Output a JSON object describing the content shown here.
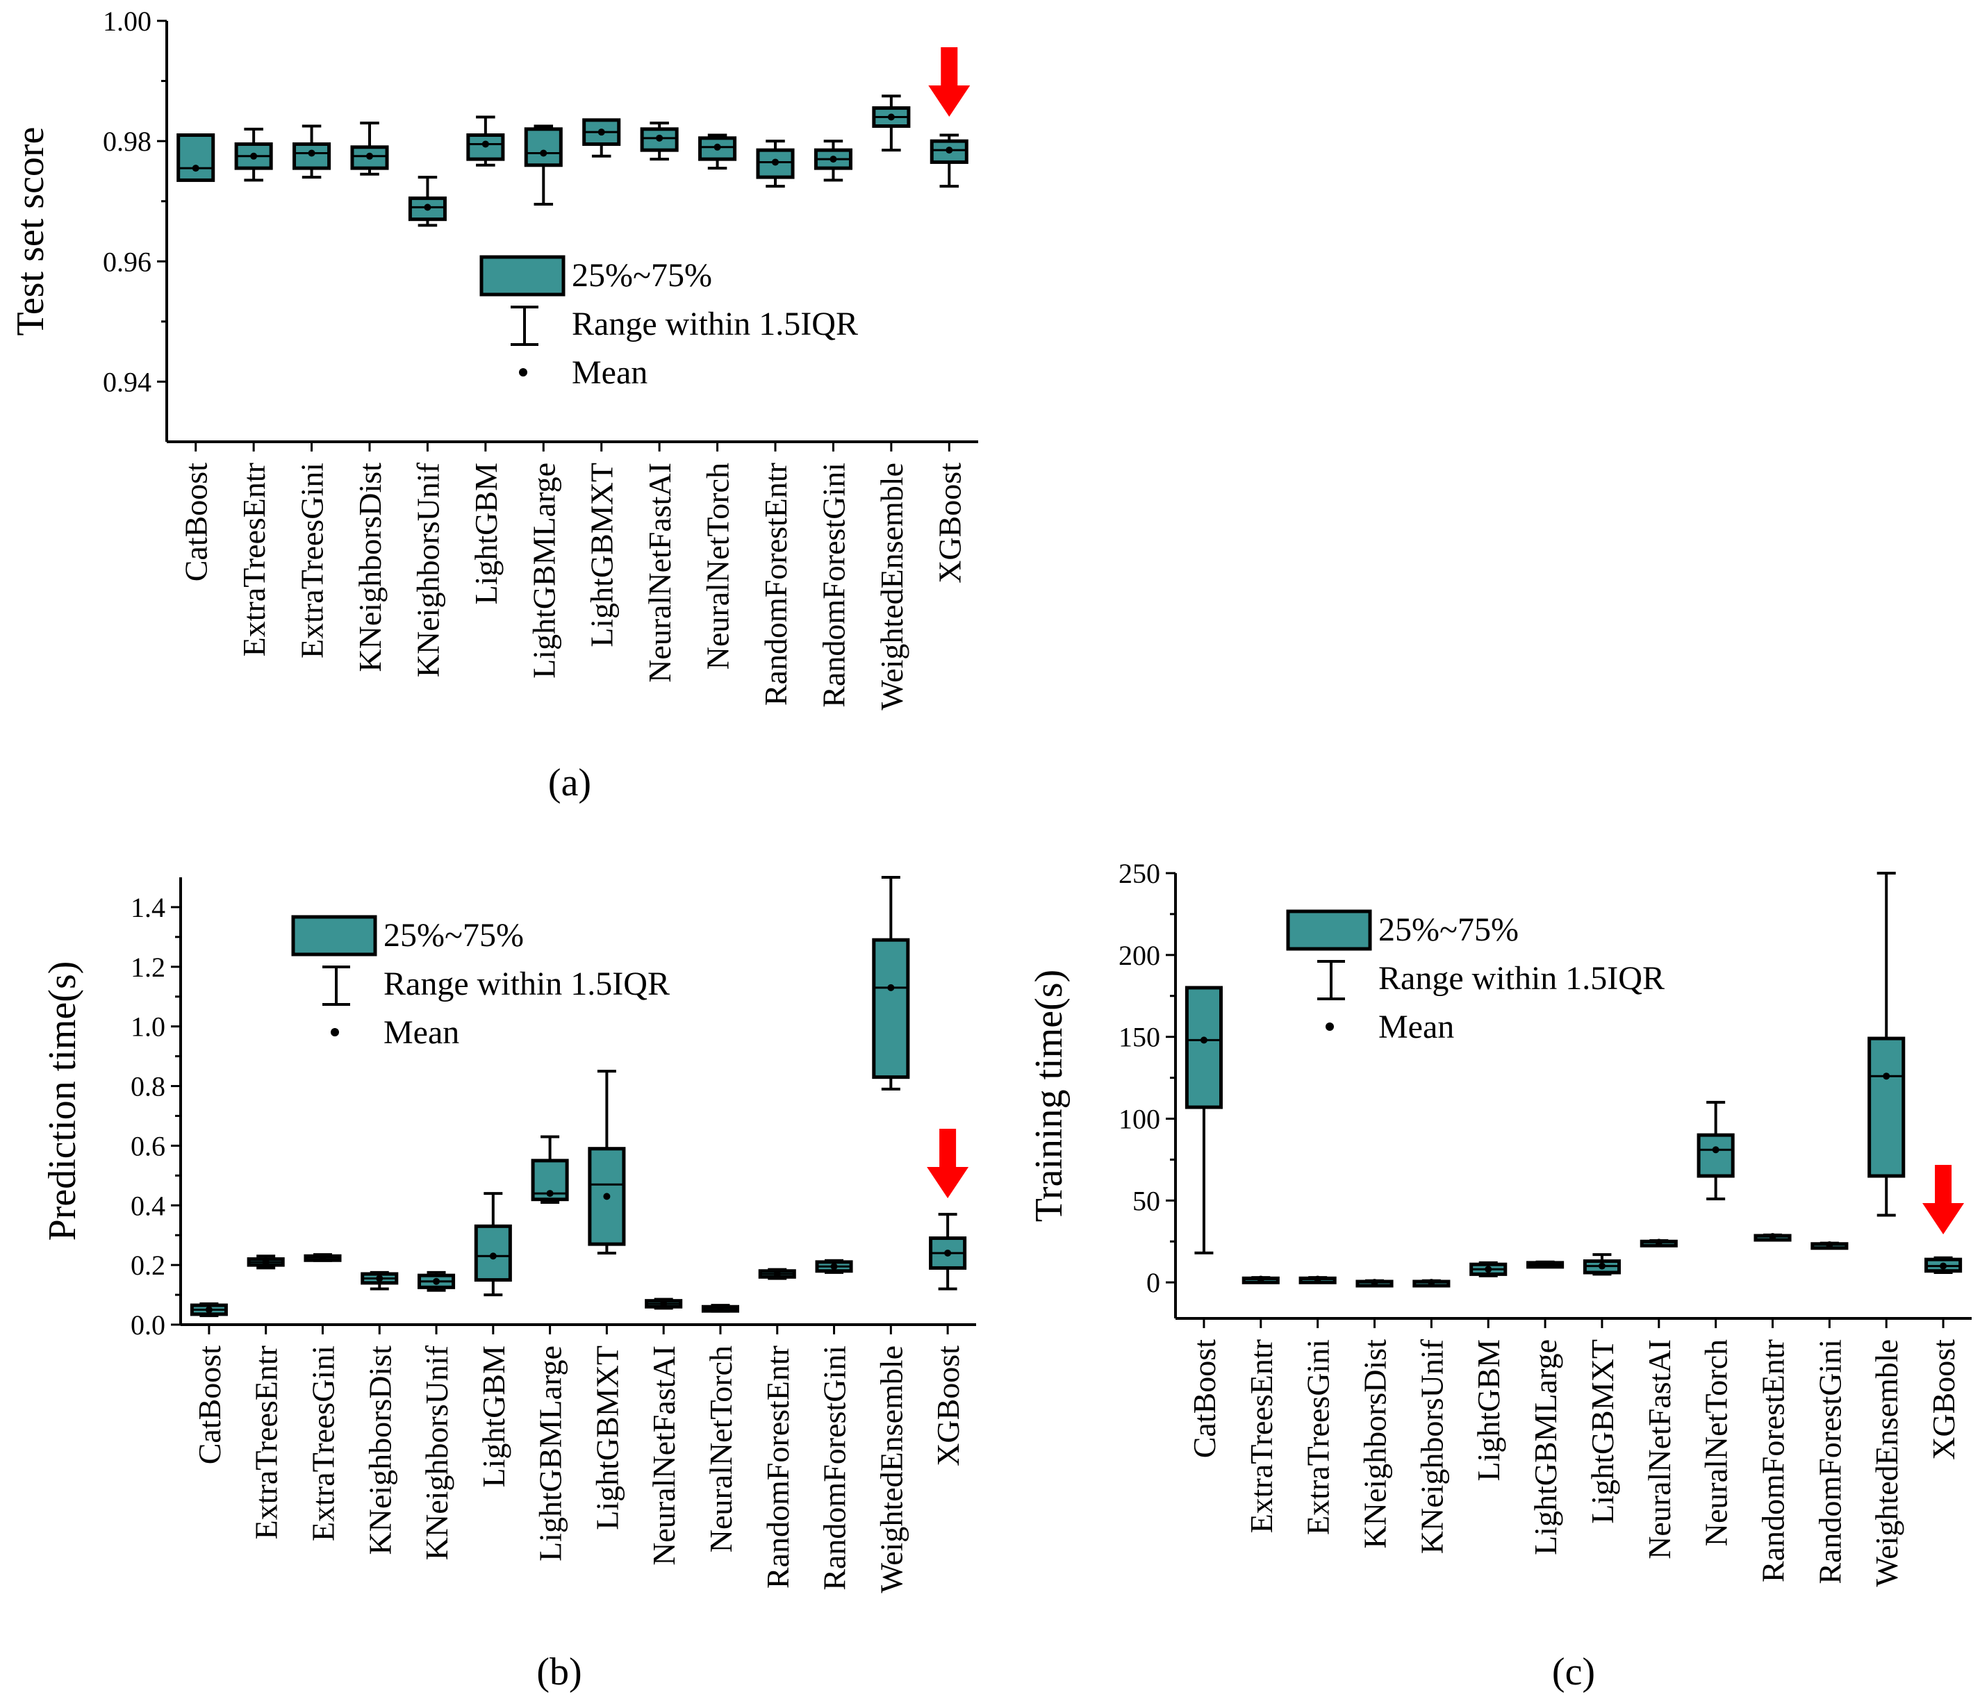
{
  "chart_data": [
    {
      "panel": "a",
      "type": "boxplot",
      "caption": "(a)",
      "ylabel": "Test set score",
      "ylim": [
        0.93,
        1.0
      ],
      "yticks": [
        "0.94",
        "0.96",
        "0.98",
        "1.00"
      ],
      "categories": [
        "CatBoost",
        "ExtraTreesEntr",
        "ExtraTreesGini",
        "KNeighborsDist",
        "KNeighborsUnif",
        "LightGBM",
        "LightGBMLarge",
        "LightGBMXT",
        "NeuralNetFastAI",
        "NeuralNetTorch",
        "RandomForestEntr",
        "RandomForestGini",
        "WeightedEnsemble",
        "XGBoost"
      ],
      "boxes": [
        {
          "min": 0.9735,
          "q1": 0.9735,
          "median": 0.9755,
          "mean": 0.9755,
          "q3": 0.981,
          "max": 0.981
        },
        {
          "min": 0.9735,
          "q1": 0.9755,
          "median": 0.9775,
          "mean": 0.9775,
          "q3": 0.9795,
          "max": 0.982
        },
        {
          "min": 0.974,
          "q1": 0.9755,
          "median": 0.978,
          "mean": 0.978,
          "q3": 0.9795,
          "max": 0.9825
        },
        {
          "min": 0.9745,
          "q1": 0.9755,
          "median": 0.9775,
          "mean": 0.9775,
          "q3": 0.979,
          "max": 0.983
        },
        {
          "min": 0.966,
          "q1": 0.967,
          "median": 0.969,
          "mean": 0.969,
          "q3": 0.9705,
          "max": 0.974
        },
        {
          "min": 0.976,
          "q1": 0.977,
          "median": 0.9795,
          "mean": 0.9795,
          "q3": 0.981,
          "max": 0.984
        },
        {
          "min": 0.9695,
          "q1": 0.976,
          "median": 0.978,
          "mean": 0.978,
          "q3": 0.982,
          "max": 0.9825
        },
        {
          "min": 0.9775,
          "q1": 0.9795,
          "median": 0.9815,
          "mean": 0.9815,
          "q3": 0.9835,
          "max": 0.9835
        },
        {
          "min": 0.977,
          "q1": 0.9785,
          "median": 0.9805,
          "mean": 0.9805,
          "q3": 0.982,
          "max": 0.983
        },
        {
          "min": 0.9755,
          "q1": 0.977,
          "median": 0.979,
          "mean": 0.979,
          "q3": 0.9805,
          "max": 0.981
        },
        {
          "min": 0.9725,
          "q1": 0.974,
          "median": 0.9765,
          "mean": 0.9765,
          "q3": 0.9785,
          "max": 0.98
        },
        {
          "min": 0.9735,
          "q1": 0.9755,
          "median": 0.977,
          "mean": 0.977,
          "q3": 0.9785,
          "max": 0.98
        },
        {
          "min": 0.9785,
          "q1": 0.9825,
          "median": 0.984,
          "mean": 0.984,
          "q3": 0.9855,
          "max": 0.9875
        },
        {
          "min": 0.9725,
          "q1": 0.9765,
          "median": 0.9785,
          "mean": 0.9785,
          "q3": 0.98,
          "max": 0.981
        }
      ],
      "highlight": "XGBoost"
    },
    {
      "panel": "b",
      "type": "boxplot",
      "caption": "(b)",
      "ylabel": "Prediction time(s)",
      "ylim": [
        0,
        1.5
      ],
      "yticks": [
        "0.0",
        "0.2",
        "0.4",
        "0.6",
        "0.8",
        "1.0",
        "1.2",
        "1.4"
      ],
      "categories": [
        "CatBoost",
        "ExtraTreesEntr",
        "ExtraTreesGini",
        "KNeighborsDist",
        "KNeighborsUnif",
        "LightGBM",
        "LightGBMLarge",
        "LightGBMXT",
        "NeuralNetFastAI",
        "NeuralNetTorch",
        "RandomForestEntr",
        "RandomForestGini",
        "WeightedEnsemble",
        "XGBoost"
      ],
      "boxes": [
        {
          "min": 0.03,
          "q1": 0.035,
          "median": 0.05,
          "mean": 0.05,
          "q3": 0.065,
          "max": 0.07
        },
        {
          "min": 0.19,
          "q1": 0.2,
          "median": 0.21,
          "mean": 0.21,
          "q3": 0.22,
          "max": 0.23
        },
        {
          "min": 0.215,
          "q1": 0.22,
          "median": 0.225,
          "mean": 0.225,
          "q3": 0.23,
          "max": 0.235
        },
        {
          "min": 0.12,
          "q1": 0.14,
          "median": 0.155,
          "mean": 0.155,
          "q3": 0.17,
          "max": 0.175
        },
        {
          "min": 0.115,
          "q1": 0.125,
          "median": 0.145,
          "mean": 0.145,
          "q3": 0.165,
          "max": 0.175
        },
        {
          "min": 0.1,
          "q1": 0.15,
          "median": 0.23,
          "mean": 0.23,
          "q3": 0.33,
          "max": 0.44
        },
        {
          "min": 0.41,
          "q1": 0.42,
          "median": 0.44,
          "mean": 0.44,
          "q3": 0.55,
          "max": 0.63
        },
        {
          "min": 0.24,
          "q1": 0.27,
          "median": 0.47,
          "mean": 0.43,
          "q3": 0.59,
          "max": 0.85
        },
        {
          "min": 0.055,
          "q1": 0.06,
          "median": 0.07,
          "mean": 0.07,
          "q3": 0.08,
          "max": 0.085
        },
        {
          "min": 0.045,
          "q1": 0.05,
          "median": 0.055,
          "mean": 0.055,
          "q3": 0.06,
          "max": 0.065
        },
        {
          "min": 0.155,
          "q1": 0.16,
          "median": 0.17,
          "mean": 0.17,
          "q3": 0.18,
          "max": 0.185
        },
        {
          "min": 0.175,
          "q1": 0.18,
          "median": 0.195,
          "mean": 0.195,
          "q3": 0.21,
          "max": 0.215
        },
        {
          "min": 0.79,
          "q1": 0.83,
          "median": 1.13,
          "mean": 1.13,
          "q3": 1.29,
          "max": 1.5
        },
        {
          "min": 0.12,
          "q1": 0.19,
          "median": 0.24,
          "mean": 0.24,
          "q3": 0.29,
          "max": 0.37
        }
      ],
      "highlight": "XGBoost"
    },
    {
      "panel": "c",
      "type": "boxplot",
      "caption": "(c)",
      "ylabel": "Training time(s)",
      "ylim": [
        -22,
        250
      ],
      "yticks": [
        "0",
        "50",
        "100",
        "150",
        "200",
        "250"
      ],
      "categories": [
        "CatBoost",
        "ExtraTreesEntr",
        "ExtraTreesGini",
        "KNeighborsDist",
        "KNeighborsUnif",
        "LightGBM",
        "LightGBMLarge",
        "LightGBMXT",
        "NeuralNetFastAI",
        "NeuralNetTorch",
        "RandomForestEntr",
        "RandomForestGini",
        "WeightedEnsemble",
        "XGBoost"
      ],
      "boxes": [
        {
          "min": 18,
          "q1": 107,
          "median": 148,
          "mean": 148,
          "q3": 180,
          "max": 180
        },
        {
          "min": 1,
          "q1": 1.5,
          "median": 2,
          "mean": 2,
          "q3": 2.5,
          "max": 3
        },
        {
          "min": 1,
          "q1": 1.5,
          "median": 2,
          "mean": 2,
          "q3": 2.5,
          "max": 3
        },
        {
          "min": -1,
          "q1": -0.5,
          "median": 0,
          "mean": 0,
          "q3": 0.5,
          "max": 1
        },
        {
          "min": -1,
          "q1": -0.5,
          "median": 0,
          "mean": 0,
          "q3": 0.5,
          "max": 1
        },
        {
          "min": 4,
          "q1": 5,
          "median": 8,
          "mean": 8,
          "q3": 11,
          "max": 12
        },
        {
          "min": 10,
          "q1": 10.5,
          "median": 11,
          "mean": 11,
          "q3": 12,
          "max": 12.5
        },
        {
          "min": 5,
          "q1": 6,
          "median": 10,
          "mean": 10,
          "q3": 13,
          "max": 17
        },
        {
          "min": 23.5,
          "q1": 24,
          "median": 24.5,
          "mean": 24.5,
          "q3": 25,
          "max": 25.5
        },
        {
          "min": 51,
          "q1": 65,
          "median": 81,
          "mean": 81,
          "q3": 90,
          "max": 110
        },
        {
          "min": 27,
          "q1": 27.5,
          "median": 28,
          "mean": 28,
          "q3": 28.5,
          "max": 29
        },
        {
          "min": 22,
          "q1": 22.5,
          "median": 23,
          "mean": 23,
          "q3": 23.5,
          "max": 24
        },
        {
          "min": 41,
          "q1": 65,
          "median": 126,
          "mean": 126,
          "q3": 149,
          "max": 250
        },
        {
          "min": 6,
          "q1": 7,
          "median": 10,
          "mean": 10,
          "q3": 14,
          "max": 15
        }
      ],
      "highlight": "XGBoost"
    }
  ],
  "legend": {
    "box_label": "25%~75%",
    "whisker_label": "Range within 1.5IQR",
    "mean_label": "Mean"
  },
  "colors": {
    "box_fill": "#3a9393",
    "arrow": "#ff0000"
  }
}
